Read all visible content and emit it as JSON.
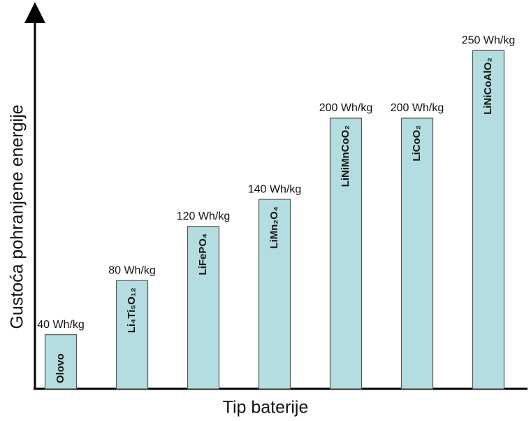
{
  "chart_data": {
    "type": "bar",
    "x_label": "Tip baterije",
    "y_label": "Gustoća pohranjene energije",
    "categories": [
      "Olovo",
      "Li₄Ti₅O₁₂",
      "LiFePO₄",
      "LiMn₂O₄",
      "LiNiMnCoO₂",
      "LiCoO₂",
      "LiNiCoAlO₂"
    ],
    "values": [
      40,
      80,
      120,
      140,
      200,
      200,
      250
    ],
    "value_labels": [
      "40 Wh/kg",
      "80 Wh/kg",
      "120 Wh/kg",
      "140 Wh/kg",
      "200 Wh/kg",
      "200 Wh/kg",
      "250 Wh/kg"
    ],
    "color": "#b3dde0",
    "ylim": [
      0,
      277
    ]
  }
}
